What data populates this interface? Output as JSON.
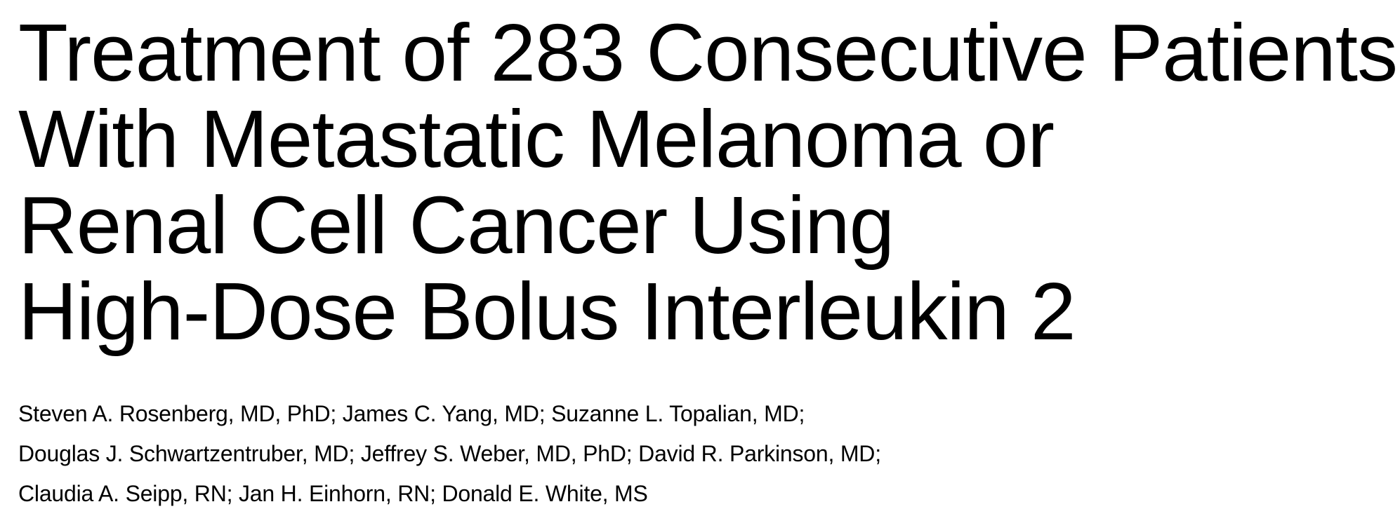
{
  "article": {
    "title_lines": [
      "Treatment of 283 Consecutive Patients",
      "With Metastatic Melanoma or",
      "Renal Cell Cancer Using",
      "High-Dose Bolus Interleukin 2"
    ],
    "author_lines": [
      "Steven A. Rosenberg, MD, PhD; James C. Yang, MD; Suzanne L. Topalian, MD;",
      "Douglas J. Schwartzentruber, MD; Jeffrey S. Weber, MD, PhD; David R. Parkinson, MD;",
      "Claudia A. Seipp, RN; Jan H. Einhorn, RN; Donald E. White, MS"
    ]
  }
}
